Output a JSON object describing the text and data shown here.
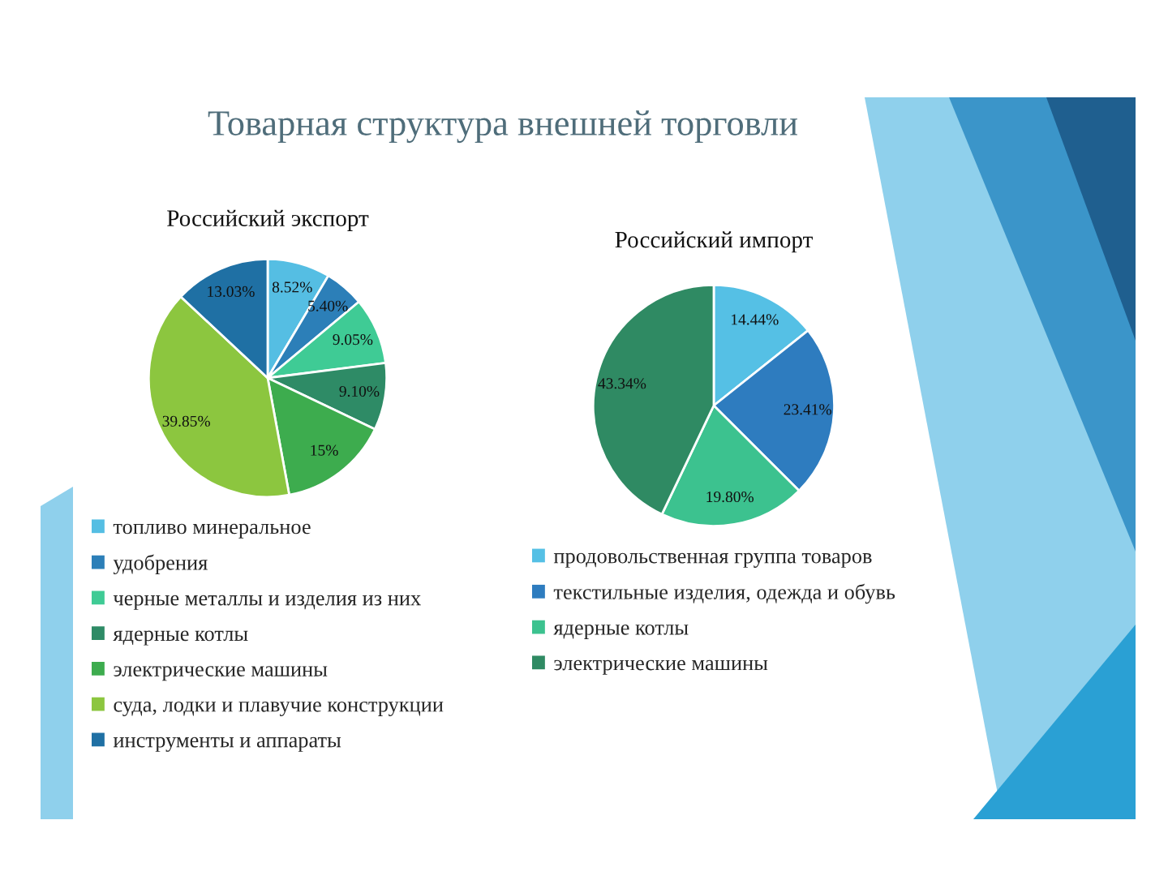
{
  "chart_data": [
    {
      "type": "pie",
      "title": "Товарная структура внешней торговли",
      "subtitle": "Российский экспорт",
      "categories": [
        "топливо минеральное",
        "удобрения",
        "черные металлы и изделия из них",
        "ядерные котлы",
        "электрические машины",
        "суда, лодки и плавучие конструкции",
        "инструменты и аппараты"
      ],
      "values": [
        8.52,
        5.4,
        9.05,
        9.1,
        15,
        39.85,
        13.03
      ],
      "value_labels": [
        "8.52%",
        "5.40%",
        "9.05%",
        "9.10%",
        "15%",
        "39.85%",
        "13.03%"
      ],
      "colors": [
        "#55bee3",
        "#2c7fb8",
        "#3fcb95",
        "#2e8b66",
        "#3dac4e",
        "#8cc63f",
        "#1f70a4"
      ],
      "legend": "bottom"
    },
    {
      "type": "pie",
      "title": "Российский импорт",
      "categories": [
        "продовольственная группа товаров",
        "текстильные изделия, одежда и обувь",
        "ядерные котлы",
        "электрические машины"
      ],
      "values": [
        14.44,
        23.41,
        19.8,
        43.34
      ],
      "value_labels": [
        "14.44%",
        "23.41%",
        "19.80%",
        "43.34%"
      ],
      "colors": [
        "#55c0e5",
        "#2e7cbf",
        "#3cc28f",
        "#2f8a63"
      ],
      "legend": "bottom"
    }
  ]
}
